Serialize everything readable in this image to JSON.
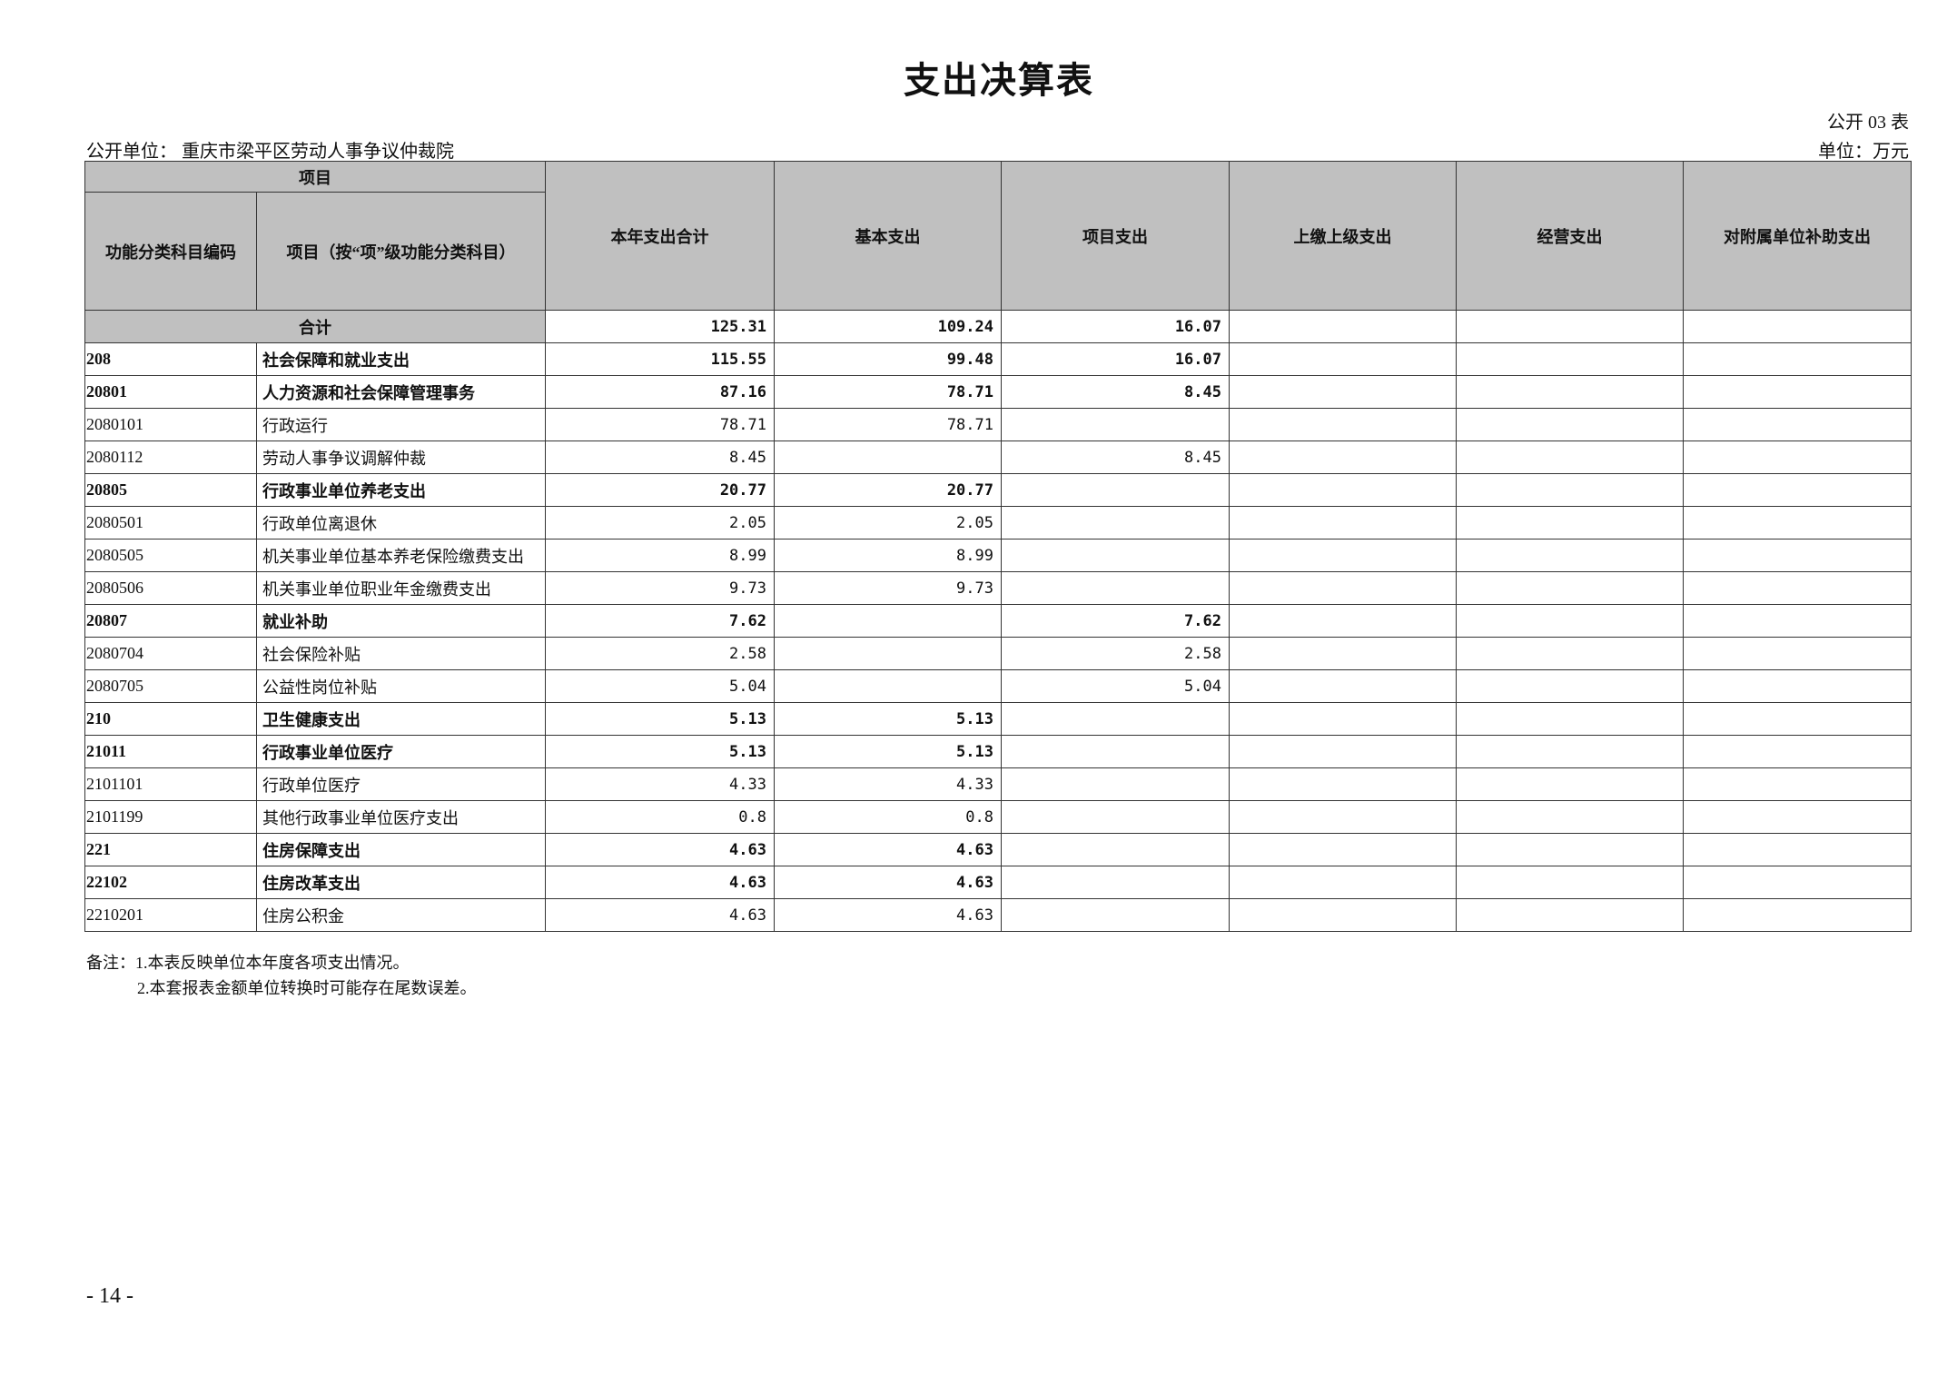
{
  "title": "支出决算表",
  "table_no": "公开 03 表",
  "unit_name": "公开单位：  重庆市梁平区劳动人事争议仲裁院",
  "unit": "单位：万元",
  "headers": {
    "project": "项目",
    "code": "功能分类科目编码",
    "name": "项目（按“项”级功能分类科目）",
    "total": "本年支出合计",
    "basic": "基本支出",
    "project_exp": "项目支出",
    "upper": "上缴上级支出",
    "business": "经营支出",
    "subsidy": "对附属单位补助支出"
  },
  "total_row": {
    "label": "合计",
    "total": "125.31",
    "basic": "109.24",
    "project": "16.07",
    "upper": "",
    "business": "",
    "subsidy": ""
  },
  "rows": [
    {
      "code": "208",
      "name": "社会保障和就业支出",
      "total": "115.55",
      "basic": "99.48",
      "project": "16.07",
      "bold": true
    },
    {
      "code": "20801",
      "name": "人力资源和社会保障管理事务",
      "total": "87.16",
      "basic": "78.71",
      "project": "8.45",
      "bold": true
    },
    {
      "code": "2080101",
      "name": "行政运行",
      "total": "78.71",
      "basic": "78.71",
      "project": "",
      "bold": false
    },
    {
      "code": "2080112",
      "name": "劳动人事争议调解仲裁",
      "total": "8.45",
      "basic": "",
      "project": "8.45",
      "bold": false
    },
    {
      "code": "20805",
      "name": "行政事业单位养老支出",
      "total": "20.77",
      "basic": "20.77",
      "project": "",
      "bold": true
    },
    {
      "code": "2080501",
      "name": "行政单位离退休",
      "total": "2.05",
      "basic": "2.05",
      "project": "",
      "bold": false
    },
    {
      "code": "2080505",
      "name": "机关事业单位基本养老保险缴费支出",
      "total": "8.99",
      "basic": "8.99",
      "project": "",
      "bold": false
    },
    {
      "code": "2080506",
      "name": "机关事业单位职业年金缴费支出",
      "total": "9.73",
      "basic": "9.73",
      "project": "",
      "bold": false
    },
    {
      "code": "20807",
      "name": "就业补助",
      "total": "7.62",
      "basic": "",
      "project": "7.62",
      "bold": true
    },
    {
      "code": "2080704",
      "name": "社会保险补贴",
      "total": "2.58",
      "basic": "",
      "project": "2.58",
      "bold": false
    },
    {
      "code": "2080705",
      "name": "公益性岗位补贴",
      "total": "5.04",
      "basic": "",
      "project": "5.04",
      "bold": false
    },
    {
      "code": "210",
      "name": "卫生健康支出",
      "total": "5.13",
      "basic": "5.13",
      "project": "",
      "bold": true
    },
    {
      "code": "21011",
      "name": "行政事业单位医疗",
      "total": "5.13",
      "basic": "5.13",
      "project": "",
      "bold": true
    },
    {
      "code": "2101101",
      "name": "行政单位医疗",
      "total": "4.33",
      "basic": "4.33",
      "project": "",
      "bold": false
    },
    {
      "code": "2101199",
      "name": "其他行政事业单位医疗支出",
      "total": "0.8",
      "basic": "0.8",
      "project": "",
      "bold": false
    },
    {
      "code": "221",
      "name": "住房保障支出",
      "total": "4.63",
      "basic": "4.63",
      "project": "",
      "bold": true
    },
    {
      "code": "22102",
      "name": "住房改革支出",
      "total": "4.63",
      "basic": "4.63",
      "project": "",
      "bold": true
    },
    {
      "code": "2210201",
      "name": "住房公积金",
      "total": "4.63",
      "basic": "4.63",
      "project": "",
      "bold": false
    }
  ],
  "notes": [
    "备注：1.本表反映单位本年度各项支出情况。",
    "2.本套报表金额单位转换时可能存在尾数误差。"
  ],
  "page_number": "- 14 -"
}
